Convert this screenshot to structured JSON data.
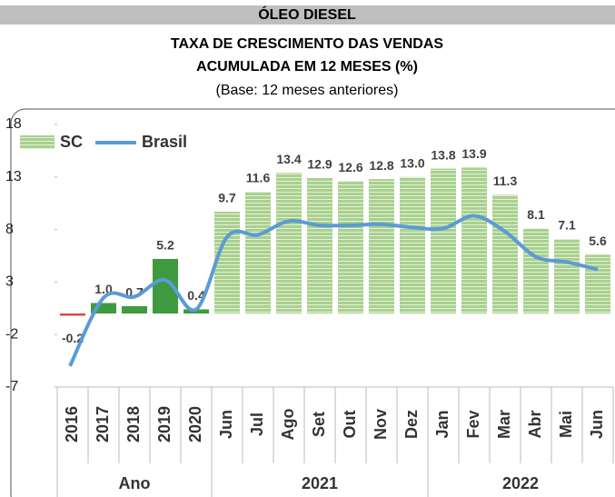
{
  "chart_data": {
    "type": "bar_line",
    "title": "ÓLEO DIESEL",
    "subtitle": [
      "TAXA DE CRESCIMENTO DAS VENDAS",
      "ACUMULADA EM 12 MESES (%)"
    ],
    "note": "(Base: 12 meses anteriores)",
    "categories": [
      "2016",
      "2017",
      "2018",
      "2019",
      "2020",
      "Jun",
      "Jul",
      "Ago",
      "Set",
      "Out",
      "Nov",
      "Dez",
      "Jan",
      "Fev",
      "Mar",
      "Abr",
      "Mai",
      "Jun"
    ],
    "groups": [
      {
        "label": "Ano",
        "count": 5
      },
      {
        "label": "2021",
        "count": 7
      },
      {
        "label": "2022",
        "count": 6
      }
    ],
    "series": [
      {
        "name": "SC",
        "kind": "bar",
        "color": "#a9d18e",
        "bar_colors": [
          "#e03a3a",
          "#3f9a3f",
          "#3f9a3f",
          "#3f9a3f",
          "#3f9a3f",
          "#a9d18e",
          "#a9d18e",
          "#a9d18e",
          "#a9d18e",
          "#a9d18e",
          "#a9d18e",
          "#a9d18e",
          "#a9d18e",
          "#a9d18e",
          "#a9d18e",
          "#a9d18e",
          "#a9d18e",
          "#a9d18e"
        ],
        "values": [
          -0.2,
          1.0,
          0.7,
          5.2,
          0.4,
          9.7,
          11.6,
          13.4,
          12.9,
          12.6,
          12.8,
          13.0,
          13.8,
          13.9,
          11.3,
          8.1,
          7.1,
          5.6
        ],
        "value_labels": [
          "-0.2",
          "1.0",
          "0.7",
          "5.2",
          "0.4",
          "9.7",
          "11.6",
          "13.4",
          "12.9",
          "12.6",
          "12.8",
          "13.0",
          "13.8",
          "13.9",
          "11.3",
          "8.1",
          "7.1",
          "5.6"
        ]
      },
      {
        "name": "Brasil",
        "kind": "line",
        "color": "#5b9bd5",
        "values": [
          -5.0,
          1.5,
          1.6,
          3.2,
          0.4,
          7.3,
          7.5,
          8.8,
          8.4,
          8.4,
          8.5,
          8.2,
          8.1,
          9.3,
          7.8,
          5.4,
          4.9,
          4.2
        ]
      }
    ],
    "ylim": [
      -7,
      18
    ],
    "yticks": [
      18,
      13,
      8,
      3,
      -2,
      -7
    ]
  }
}
